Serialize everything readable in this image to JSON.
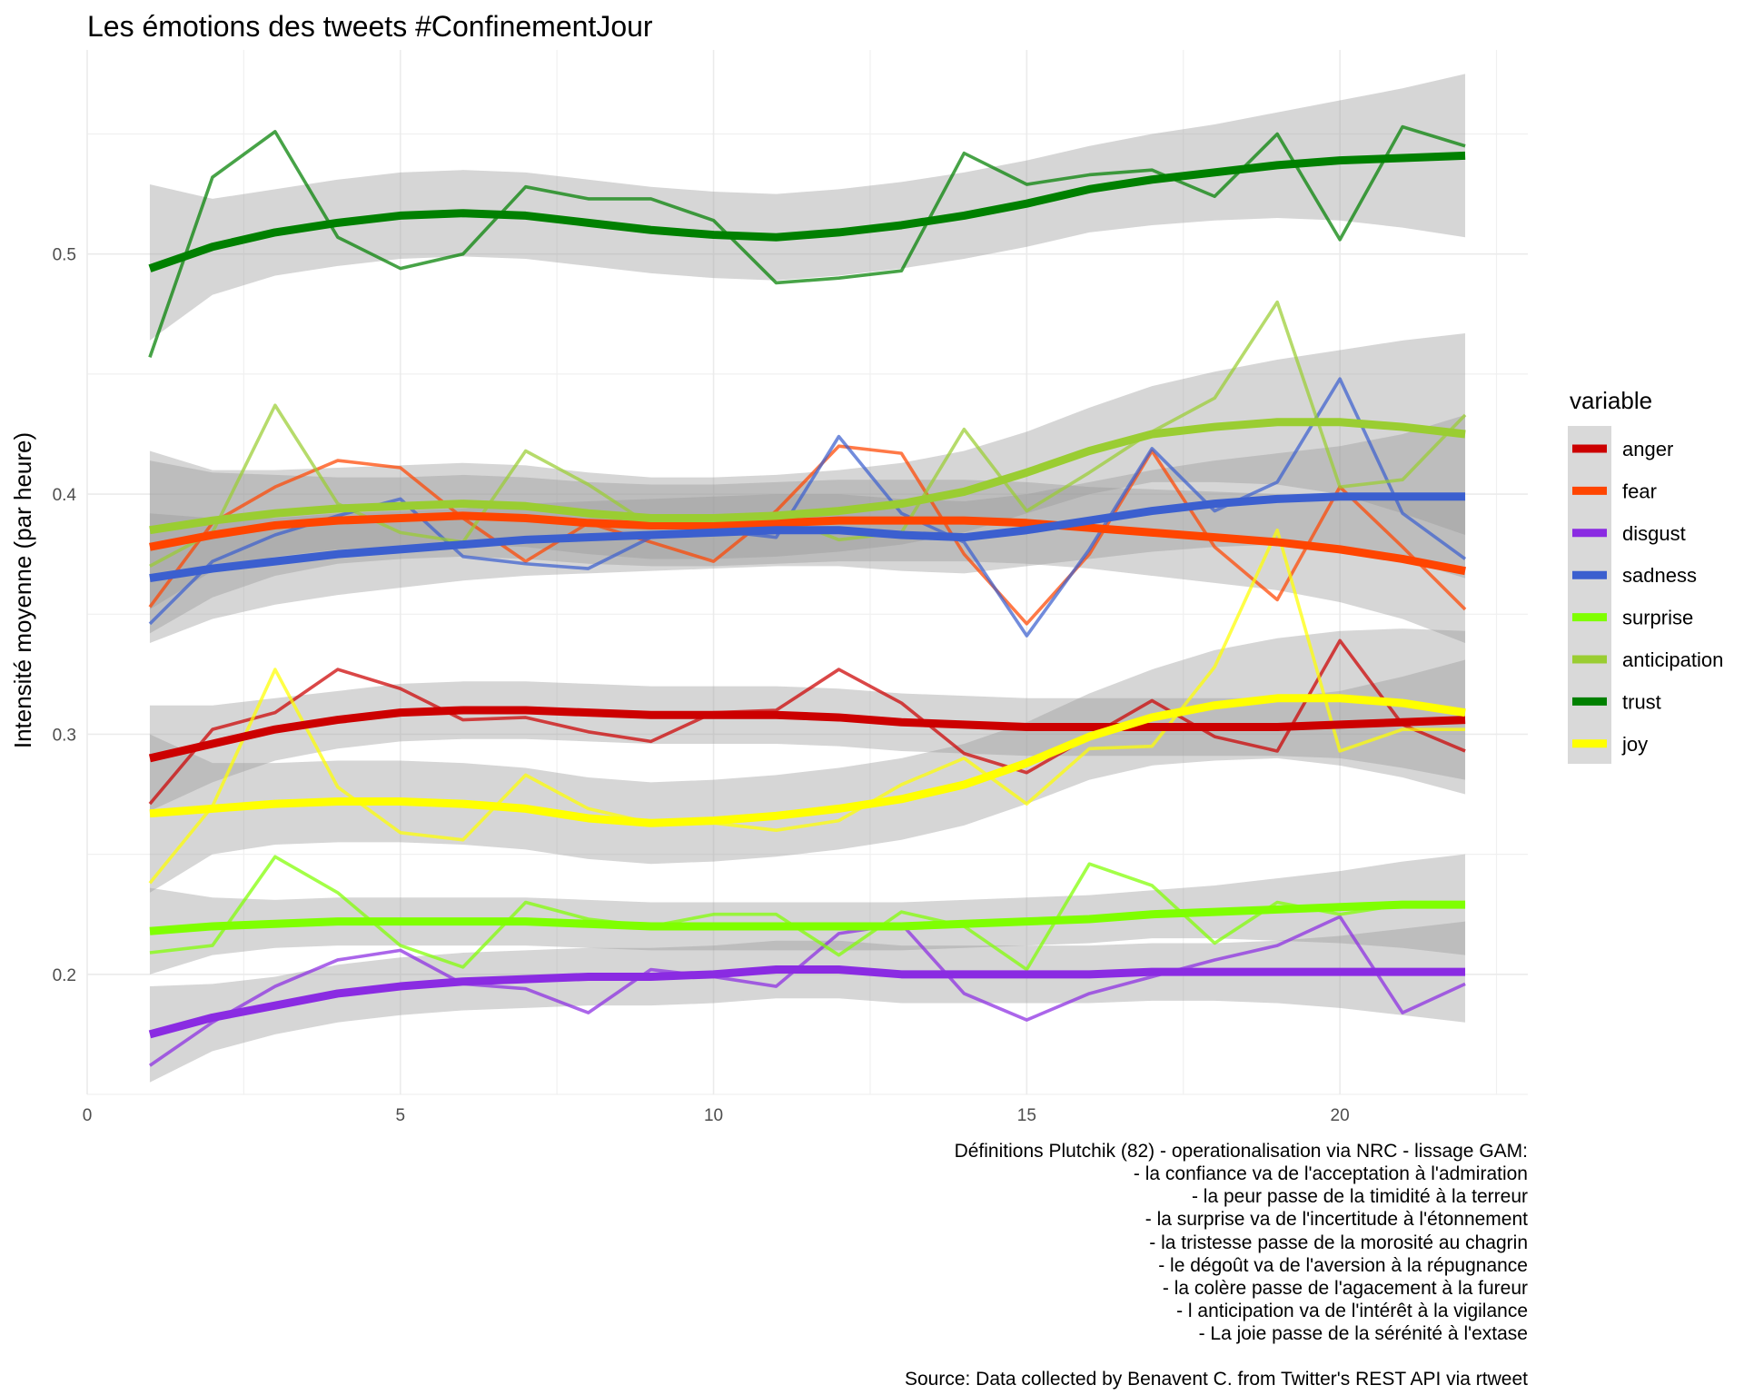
{
  "chart_data": {
    "type": "line",
    "title": "Les émotions des tweets #ConfinementJour",
    "xlabel": "",
    "ylabel": "Intensité moyenne (par heure)",
    "xlim": [
      0,
      23
    ],
    "ylim": [
      0.15,
      0.585
    ],
    "x_ticks": [
      0,
      5,
      10,
      15,
      20
    ],
    "y_ticks": [
      0.2,
      0.3,
      0.4,
      0.5
    ],
    "grid": true,
    "legend_title": "variable",
    "legend_position": "right",
    "x": [
      1,
      2,
      3,
      4,
      5,
      6,
      7,
      8,
      9,
      10,
      11,
      12,
      13,
      14,
      15,
      16,
      17,
      18,
      19,
      20,
      21,
      22
    ],
    "series": [
      {
        "name": "anger",
        "color": "#cc0000",
        "values": [
          0.271,
          0.302,
          0.309,
          0.327,
          0.319,
          0.306,
          0.307,
          0.301,
          0.297,
          0.309,
          0.31,
          0.327,
          0.313,
          0.292,
          0.284,
          0.299,
          0.314,
          0.299,
          0.293,
          0.339,
          0.304,
          0.293
        ],
        "smooth": [
          0.29,
          0.296,
          0.302,
          0.306,
          0.309,
          0.31,
          0.31,
          0.309,
          0.308,
          0.308,
          0.308,
          0.307,
          0.305,
          0.304,
          0.303,
          0.303,
          0.303,
          0.303,
          0.303,
          0.304,
          0.305,
          0.306
        ],
        "band": [
          [
            0.268,
            0.312
          ],
          [
            0.28,
            0.312
          ],
          [
            0.289,
            0.315
          ],
          [
            0.294,
            0.318
          ],
          [
            0.297,
            0.321
          ],
          [
            0.298,
            0.322
          ],
          [
            0.298,
            0.322
          ],
          [
            0.297,
            0.321
          ],
          [
            0.296,
            0.32
          ],
          [
            0.296,
            0.32
          ],
          [
            0.296,
            0.32
          ],
          [
            0.295,
            0.319
          ],
          [
            0.293,
            0.317
          ],
          [
            0.292,
            0.316
          ],
          [
            0.291,
            0.315
          ],
          [
            0.291,
            0.315
          ],
          [
            0.291,
            0.315
          ],
          [
            0.291,
            0.315
          ],
          [
            0.291,
            0.315
          ],
          [
            0.29,
            0.318
          ],
          [
            0.286,
            0.324
          ],
          [
            0.281,
            0.331
          ]
        ]
      },
      {
        "name": "fear",
        "color": "#ff4500",
        "values": [
          0.353,
          0.388,
          0.403,
          0.414,
          0.411,
          0.39,
          0.372,
          0.388,
          0.38,
          0.372,
          0.393,
          0.42,
          0.417,
          0.375,
          0.346,
          0.375,
          0.418,
          0.378,
          0.356,
          0.403,
          0.378,
          0.352
        ],
        "smooth": [
          0.378,
          0.383,
          0.387,
          0.389,
          0.39,
          0.391,
          0.39,
          0.388,
          0.387,
          0.387,
          0.388,
          0.389,
          0.389,
          0.389,
          0.388,
          0.386,
          0.384,
          0.382,
          0.38,
          0.377,
          0.373,
          0.368
        ],
        "band": [
          [
            0.342,
            0.414
          ],
          [
            0.357,
            0.409
          ],
          [
            0.366,
            0.408
          ],
          [
            0.371,
            0.407
          ],
          [
            0.373,
            0.407
          ],
          [
            0.374,
            0.408
          ],
          [
            0.373,
            0.407
          ],
          [
            0.371,
            0.405
          ],
          [
            0.37,
            0.404
          ],
          [
            0.37,
            0.404
          ],
          [
            0.371,
            0.405
          ],
          [
            0.372,
            0.406
          ],
          [
            0.372,
            0.406
          ],
          [
            0.372,
            0.406
          ],
          [
            0.371,
            0.405
          ],
          [
            0.369,
            0.403
          ],
          [
            0.366,
            0.402
          ],
          [
            0.363,
            0.401
          ],
          [
            0.36,
            0.4
          ],
          [
            0.355,
            0.399
          ],
          [
            0.348,
            0.398
          ],
          [
            0.338,
            0.398
          ]
        ]
      },
      {
        "name": "disgust",
        "color": "#8a2be2",
        "values": [
          0.162,
          0.18,
          0.195,
          0.206,
          0.21,
          0.196,
          0.194,
          0.184,
          0.202,
          0.199,
          0.195,
          0.217,
          0.221,
          0.192,
          0.181,
          0.192,
          0.199,
          0.206,
          0.212,
          0.224,
          0.184,
          0.196
        ],
        "smooth": [
          0.175,
          0.182,
          0.187,
          0.192,
          0.195,
          0.197,
          0.198,
          0.199,
          0.199,
          0.2,
          0.202,
          0.202,
          0.2,
          0.2,
          0.2,
          0.2,
          0.201,
          0.201,
          0.201,
          0.201,
          0.201,
          0.201
        ],
        "band": [
          [
            0.155,
            0.195
          ],
          [
            0.168,
            0.196
          ],
          [
            0.175,
            0.199
          ],
          [
            0.18,
            0.204
          ],
          [
            0.183,
            0.207
          ],
          [
            0.185,
            0.209
          ],
          [
            0.186,
            0.21
          ],
          [
            0.187,
            0.211
          ],
          [
            0.187,
            0.211
          ],
          [
            0.188,
            0.212
          ],
          [
            0.19,
            0.214
          ],
          [
            0.19,
            0.214
          ],
          [
            0.188,
            0.212
          ],
          [
            0.188,
            0.212
          ],
          [
            0.188,
            0.212
          ],
          [
            0.188,
            0.212
          ],
          [
            0.189,
            0.213
          ],
          [
            0.189,
            0.213
          ],
          [
            0.188,
            0.214
          ],
          [
            0.186,
            0.216
          ],
          [
            0.183,
            0.219
          ],
          [
            0.18,
            0.222
          ]
        ]
      },
      {
        "name": "sadness",
        "color": "#3b5fcf",
        "values": [
          0.346,
          0.372,
          0.383,
          0.391,
          0.398,
          0.374,
          0.371,
          0.369,
          0.382,
          0.385,
          0.382,
          0.424,
          0.392,
          0.38,
          0.341,
          0.377,
          0.419,
          0.393,
          0.405,
          0.448,
          0.392,
          0.373
        ],
        "smooth": [
          0.365,
          0.369,
          0.372,
          0.375,
          0.377,
          0.379,
          0.381,
          0.382,
          0.383,
          0.384,
          0.385,
          0.385,
          0.383,
          0.382,
          0.385,
          0.389,
          0.393,
          0.396,
          0.398,
          0.399,
          0.399,
          0.399
        ],
        "band": [
          [
            0.338,
            0.392
          ],
          [
            0.348,
            0.39
          ],
          [
            0.354,
            0.39
          ],
          [
            0.358,
            0.392
          ],
          [
            0.361,
            0.393
          ],
          [
            0.364,
            0.394
          ],
          [
            0.366,
            0.396
          ],
          [
            0.367,
            0.397
          ],
          [
            0.368,
            0.398
          ],
          [
            0.369,
            0.399
          ],
          [
            0.37,
            0.4
          ],
          [
            0.37,
            0.4
          ],
          [
            0.368,
            0.398
          ],
          [
            0.367,
            0.397
          ],
          [
            0.37,
            0.4
          ],
          [
            0.373,
            0.405
          ],
          [
            0.376,
            0.41
          ],
          [
            0.378,
            0.414
          ],
          [
            0.379,
            0.417
          ],
          [
            0.378,
            0.42
          ],
          [
            0.373,
            0.425
          ],
          [
            0.365,
            0.433
          ]
        ]
      },
      {
        "name": "surprise",
        "color": "#7fff00",
        "values": [
          0.209,
          0.212,
          0.249,
          0.234,
          0.212,
          0.203,
          0.23,
          0.223,
          0.22,
          0.225,
          0.225,
          0.208,
          0.226,
          0.22,
          0.202,
          0.246,
          0.237,
          0.213,
          0.23,
          0.225,
          0.229,
          0.229
        ],
        "smooth": [
          0.218,
          0.22,
          0.221,
          0.222,
          0.222,
          0.222,
          0.222,
          0.221,
          0.22,
          0.22,
          0.22,
          0.22,
          0.22,
          0.221,
          0.222,
          0.223,
          0.225,
          0.226,
          0.227,
          0.228,
          0.229,
          0.229
        ],
        "band": [
          [
            0.2,
            0.236
          ],
          [
            0.208,
            0.232
          ],
          [
            0.211,
            0.231
          ],
          [
            0.212,
            0.232
          ],
          [
            0.212,
            0.232
          ],
          [
            0.212,
            0.232
          ],
          [
            0.212,
            0.232
          ],
          [
            0.211,
            0.231
          ],
          [
            0.21,
            0.23
          ],
          [
            0.21,
            0.23
          ],
          [
            0.21,
            0.23
          ],
          [
            0.21,
            0.23
          ],
          [
            0.21,
            0.23
          ],
          [
            0.211,
            0.231
          ],
          [
            0.212,
            0.232
          ],
          [
            0.213,
            0.233
          ],
          [
            0.215,
            0.235
          ],
          [
            0.215,
            0.237
          ],
          [
            0.214,
            0.24
          ],
          [
            0.213,
            0.243
          ],
          [
            0.211,
            0.247
          ],
          [
            0.208,
            0.25
          ]
        ]
      },
      {
        "name": "anticipation",
        "color": "#9acd32",
        "values": [
          0.37,
          0.384,
          0.437,
          0.396,
          0.384,
          0.38,
          0.418,
          0.404,
          0.387,
          0.385,
          0.391,
          0.381,
          0.384,
          0.427,
          0.393,
          0.409,
          0.426,
          0.44,
          0.48,
          0.403,
          0.406,
          0.433
        ],
        "smooth": [
          0.385,
          0.389,
          0.392,
          0.394,
          0.395,
          0.396,
          0.395,
          0.392,
          0.39,
          0.39,
          0.391,
          0.393,
          0.396,
          0.401,
          0.409,
          0.418,
          0.425,
          0.428,
          0.43,
          0.43,
          0.428,
          0.425
        ],
        "band": [
          [
            0.352,
            0.418
          ],
          [
            0.368,
            0.41
          ],
          [
            0.374,
            0.41
          ],
          [
            0.377,
            0.411
          ],
          [
            0.378,
            0.412
          ],
          [
            0.379,
            0.413
          ],
          [
            0.378,
            0.412
          ],
          [
            0.375,
            0.409
          ],
          [
            0.373,
            0.407
          ],
          [
            0.373,
            0.407
          ],
          [
            0.374,
            0.408
          ],
          [
            0.376,
            0.41
          ],
          [
            0.379,
            0.413
          ],
          [
            0.384,
            0.418
          ],
          [
            0.392,
            0.426
          ],
          [
            0.4,
            0.436
          ],
          [
            0.405,
            0.445
          ],
          [
            0.405,
            0.451
          ],
          [
            0.404,
            0.456
          ],
          [
            0.4,
            0.46
          ],
          [
            0.392,
            0.464
          ],
          [
            0.383,
            0.467
          ]
        ]
      },
      {
        "name": "trust",
        "color": "#008000",
        "values": [
          0.457,
          0.532,
          0.551,
          0.507,
          0.494,
          0.5,
          0.528,
          0.523,
          0.523,
          0.514,
          0.488,
          0.49,
          0.493,
          0.542,
          0.529,
          0.533,
          0.535,
          0.524,
          0.55,
          0.506,
          0.553,
          0.545
        ],
        "smooth": [
          0.494,
          0.503,
          0.509,
          0.513,
          0.516,
          0.517,
          0.516,
          0.513,
          0.51,
          0.508,
          0.507,
          0.509,
          0.512,
          0.516,
          0.521,
          0.527,
          0.531,
          0.534,
          0.537,
          0.539,
          0.54,
          0.541
        ],
        "band": [
          [
            0.464,
            0.529
          ],
          [
            0.483,
            0.523
          ],
          [
            0.491,
            0.527
          ],
          [
            0.495,
            0.531
          ],
          [
            0.498,
            0.534
          ],
          [
            0.499,
            0.535
          ],
          [
            0.498,
            0.534
          ],
          [
            0.495,
            0.531
          ],
          [
            0.492,
            0.528
          ],
          [
            0.49,
            0.526
          ],
          [
            0.489,
            0.525
          ],
          [
            0.491,
            0.527
          ],
          [
            0.494,
            0.53
          ],
          [
            0.498,
            0.534
          ],
          [
            0.503,
            0.539
          ],
          [
            0.509,
            0.545
          ],
          [
            0.512,
            0.55
          ],
          [
            0.514,
            0.554
          ],
          [
            0.515,
            0.559
          ],
          [
            0.514,
            0.564
          ],
          [
            0.511,
            0.569
          ],
          [
            0.507,
            0.575
          ]
        ]
      },
      {
        "name": "joy",
        "color": "#ffff00",
        "values": [
          0.238,
          0.27,
          0.327,
          0.278,
          0.259,
          0.256,
          0.283,
          0.269,
          0.263,
          0.263,
          0.26,
          0.264,
          0.279,
          0.29,
          0.271,
          0.294,
          0.295,
          0.328,
          0.385,
          0.293,
          0.302,
          0.302
        ],
        "smooth": [
          0.267,
          0.269,
          0.271,
          0.272,
          0.272,
          0.271,
          0.269,
          0.265,
          0.263,
          0.264,
          0.266,
          0.269,
          0.273,
          0.279,
          0.288,
          0.299,
          0.307,
          0.312,
          0.315,
          0.315,
          0.313,
          0.309
        ],
        "band": [
          [
            0.234,
            0.3
          ],
          [
            0.25,
            0.288
          ],
          [
            0.254,
            0.288
          ],
          [
            0.255,
            0.289
          ],
          [
            0.255,
            0.289
          ],
          [
            0.254,
            0.288
          ],
          [
            0.252,
            0.286
          ],
          [
            0.248,
            0.282
          ],
          [
            0.246,
            0.28
          ],
          [
            0.247,
            0.281
          ],
          [
            0.249,
            0.283
          ],
          [
            0.252,
            0.286
          ],
          [
            0.256,
            0.29
          ],
          [
            0.262,
            0.296
          ],
          [
            0.271,
            0.305
          ],
          [
            0.281,
            0.317
          ],
          [
            0.287,
            0.327
          ],
          [
            0.289,
            0.335
          ],
          [
            0.29,
            0.34
          ],
          [
            0.287,
            0.343
          ],
          [
            0.282,
            0.344
          ],
          [
            0.275,
            0.343
          ]
        ]
      }
    ]
  },
  "caption": {
    "lines": [
      "Définitions Plutchik (82) - operationalisation via NRC - lissage GAM:",
      "- la confiance va de l'acceptation à l'admiration",
      "- la peur passe de la timidité à la terreur",
      "- la surprise va de l'incertitude à l'étonnement",
      "- la tristesse passe de la morosité au chagrin",
      "- le dégoût va de l'aversion à la répugnance",
      "- la colère passe de l'agacement à la fureur",
      "- l anticipation va de l'intérêt à la vigilance",
      "- La joie passe de la sérénité à l'extase"
    ],
    "source": "Source: Data collected by Benavent C. from Twitter's REST API via rtweet"
  }
}
